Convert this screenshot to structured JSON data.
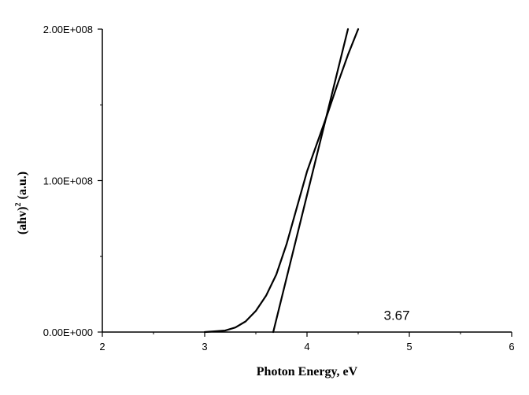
{
  "chart_data": {
    "type": "line",
    "xlabel": "Photon Energy, eV",
    "ylabel_main": "(ahv)",
    "ylabel_sup": "2",
    "ylabel_unit": "(a.u.)",
    "xlim": [
      2,
      6
    ],
    "ylim": [
      0,
      200000000
    ],
    "x_ticks": [
      2,
      3,
      4,
      5,
      6
    ],
    "x_tick_labels": [
      "2",
      "3",
      "4",
      "5",
      "6"
    ],
    "y_ticks": [
      0,
      100000000,
      200000000
    ],
    "y_tick_labels": [
      "0.00E+000",
      "1.00E+008",
      "2.00E+008"
    ],
    "y_minor_ticks": [
      50000000,
      150000000
    ],
    "grid": false,
    "series": [
      {
        "style": "curve",
        "x": [
          3.0,
          3.2,
          3.3,
          3.4,
          3.5,
          3.6,
          3.7,
          3.8,
          3.9,
          4.0,
          4.1,
          4.2,
          4.3,
          4.4,
          4.5
        ],
        "y": [
          0,
          1000000,
          3000000,
          7000000,
          14000000,
          24000000,
          38000000,
          58000000,
          82000000,
          106000000,
          125000000,
          144000000,
          164000000,
          183000000,
          200000000
        ]
      },
      {
        "style": "tangent",
        "x": [
          3.67,
          4.4
        ],
        "y": [
          0,
          200000000
        ]
      }
    ],
    "annotations": [
      {
        "text": "3.67",
        "x": 4.75,
        "y": 8000000
      }
    ]
  }
}
